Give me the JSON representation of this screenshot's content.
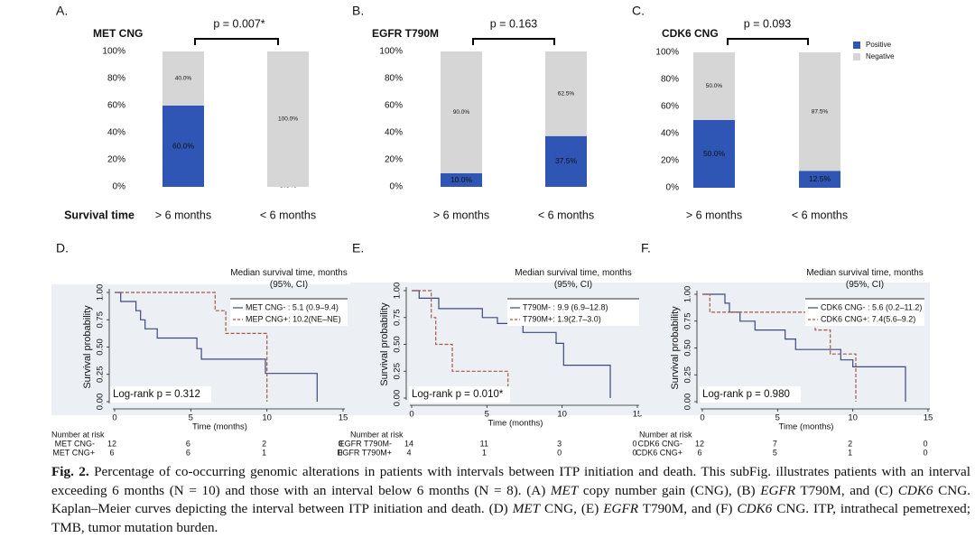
{
  "chart_data": [
    {
      "type": "bar",
      "panel": "A.",
      "title": "MET CNG",
      "annotation": "p = 0.007*",
      "xlabel": "Survival time",
      "categories": [
        "> 6 months",
        "< 6 months"
      ],
      "series": [
        {
          "color": "#2f55b5",
          "values": [
            60,
            0
          ],
          "value_labels": [
            "60.0%",
            "0.0%"
          ]
        },
        {
          "color": "#d6d6d6",
          "values": [
            40,
            100
          ],
          "value_labels": [
            "40.0%",
            "100.0%"
          ]
        }
      ],
      "ylim": [
        0,
        100
      ],
      "yticks": [
        {
          "value": 0,
          "label": "0%"
        },
        {
          "value": 20,
          "label": "20%"
        },
        {
          "value": 40,
          "label": "40%"
        },
        {
          "value": 60,
          "label": "60%"
        },
        {
          "value": 80,
          "label": "80%"
        },
        {
          "value": 100,
          "label": "100%"
        }
      ]
    },
    {
      "type": "bar",
      "panel": "B.",
      "title": "EGFR T790M",
      "annotation": "p = 0.163",
      "categories": [
        "> 6 months",
        "< 6 months"
      ],
      "series": [
        {
          "color": "#2f55b5",
          "values": [
            10,
            37.5
          ],
          "value_labels": [
            "10.0%",
            "37.5%"
          ]
        },
        {
          "color": "#d6d6d6",
          "values": [
            90,
            62.5
          ],
          "value_labels": [
            "90.0%",
            "62.5%"
          ]
        }
      ],
      "ylim": [
        0,
        100
      ],
      "yticks": [
        {
          "value": 0,
          "label": "0%"
        },
        {
          "value": 20,
          "label": "20%"
        },
        {
          "value": 40,
          "label": "40%"
        },
        {
          "value": 60,
          "label": "60%"
        },
        {
          "value": 80,
          "label": "80%"
        },
        {
          "value": 100,
          "label": "100%"
        }
      ]
    },
    {
      "type": "bar",
      "panel": "C.",
      "title": "CDK6 CNG",
      "annotation": "p = 0.093",
      "legend": true,
      "categories": [
        "> 6 months",
        "< 6 months"
      ],
      "series": [
        {
          "name": "Positive",
          "color": "#2f55b5",
          "values": [
            50,
            12.5
          ],
          "value_labels": [
            "50.0%",
            "12.5%"
          ]
        },
        {
          "name": "Negative",
          "color": "#d6d6d6",
          "values": [
            50,
            87.5
          ],
          "value_labels": [
            "50.0%",
            "87.5%"
          ]
        }
      ],
      "ylim": [
        0,
        100
      ],
      "yticks": [
        {
          "value": 0,
          "label": "0%"
        },
        {
          "value": 20,
          "label": "20%"
        },
        {
          "value": 40,
          "label": "40%"
        },
        {
          "value": 60,
          "label": "60%"
        },
        {
          "value": 80,
          "label": "80%"
        },
        {
          "value": 100,
          "label": "100%"
        }
      ]
    },
    {
      "type": "line",
      "panel": "D.",
      "xlabel": "Time (months)",
      "ylabel": "Survival probability",
      "legend_title": "Median survival time, months (95%, CI)",
      "annotation": "Log-rank p = 0.312",
      "xlim": [
        0,
        15
      ],
      "ylim": [
        0,
        1
      ],
      "xticks": [
        0,
        5,
        10,
        15
      ],
      "yticks": [
        {
          "value": 0,
          "label": "0.00"
        },
        {
          "value": 0.25,
          "label": "0.25"
        },
        {
          "value": 0.5,
          "label": "0.50"
        },
        {
          "value": 0.75,
          "label": "0.75"
        },
        {
          "value": 1,
          "label": "1.00"
        }
      ],
      "series": [
        {
          "name": "MET CNG- : 5.1 (0.9–9.4)",
          "color": "#3b4a7c",
          "dashed": false,
          "x": [
            0,
            0.4,
            0.4,
            1.4,
            1.4,
            1.7,
            1.7,
            2,
            2,
            2.8,
            2.8,
            5.4,
            5.4,
            5.7,
            5.7,
            9.9,
            9.9,
            13.3,
            13.3
          ],
          "values": [
            1,
            1,
            0.917,
            0.917,
            0.833,
            0.833,
            0.75,
            0.75,
            0.667,
            0.667,
            0.583,
            0.583,
            0.486,
            0.486,
            0.389,
            0.389,
            0.259,
            0.259,
            0
          ]
        },
        {
          "name": "MEP CNG+: 10.2(NE–NE)",
          "color": "#a5574a",
          "dashed": true,
          "x": [
            0,
            6.6,
            6.6,
            7.3,
            7.3,
            10,
            10
          ],
          "values": [
            1,
            1,
            0.833,
            0.833,
            0.625,
            0.625,
            0
          ]
        }
      ],
      "risk_table": {
        "title": "Number at risk",
        "rows": [
          {
            "label": "MET CNG-",
            "values": [
              12,
              6,
              2,
              0
            ]
          },
          {
            "label": "MET CNG+",
            "values": [
              6,
              6,
              1,
              0
            ]
          }
        ]
      }
    },
    {
      "type": "line",
      "panel": "E.",
      "xlabel": "Time (months)",
      "ylabel": "Survival probability",
      "legend_title": "Median survival time, months (95%, CI)",
      "annotation": "Log-rank p = 0.010*",
      "xlim": [
        0,
        15
      ],
      "ylim": [
        0,
        1
      ],
      "xticks": [
        0,
        5,
        10,
        15
      ],
      "yticks": [
        {
          "value": 0,
          "label": "0.00"
        },
        {
          "value": 0.25,
          "label": "0.25"
        },
        {
          "value": 0.5,
          "label": "0.50"
        },
        {
          "value": 0.75,
          "label": "0.75"
        },
        {
          "value": 1,
          "label": "1.00"
        }
      ],
      "series": [
        {
          "name": "T790M- : 9.9 (6.9–12.8)",
          "color": "#3b4a7c",
          "dashed": false,
          "x": [
            0,
            0.5,
            0.5,
            1.8,
            1.8,
            4.7,
            4.7,
            5.7,
            5.7,
            7.4,
            7.4,
            9.6,
            9.6,
            10.1,
            10.1,
            13.2,
            13.2
          ],
          "values": [
            1,
            1,
            0.929,
            0.929,
            0.833,
            0.833,
            0.75,
            0.75,
            0.694,
            0.694,
            0.611,
            0.611,
            0.509,
            0.509,
            0.306,
            0.306,
            0
          ]
        },
        {
          "name": "T790M+: 1.9(2.7–3.0)",
          "color": "#a5574a",
          "dashed": true,
          "x": [
            0,
            1.3,
            1.3,
            1.6,
            1.6,
            2.7,
            2.7,
            6.4,
            6.4
          ],
          "values": [
            1,
            1,
            0.75,
            0.75,
            0.5,
            0.5,
            0.25,
            0.25,
            0
          ]
        }
      ],
      "risk_table": {
        "title": "Number at risk",
        "rows": [
          {
            "label": "EGFR T790M-",
            "values": [
              14,
              11,
              3,
              0
            ]
          },
          {
            "label": "EGFR T790M+",
            "values": [
              4,
              1,
              0,
              0
            ]
          }
        ]
      }
    },
    {
      "type": "line",
      "panel": "F.",
      "xlabel": "Time (months)",
      "ylabel": "Survival probability",
      "legend_title": "Median survival time, months (95%, CI)",
      "annotation": "Log-rank p = 0.980",
      "xlim": [
        0,
        15
      ],
      "ylim": [
        0,
        1
      ],
      "xticks": [
        0,
        5,
        10,
        15
      ],
      "yticks": [
        {
          "value": 0,
          "label": "0.00"
        },
        {
          "value": 0.25,
          "label": "0.25"
        },
        {
          "value": 0.5,
          "label": "0.50"
        },
        {
          "value": 0.75,
          "label": "0.75"
        },
        {
          "value": 1,
          "label": "1.00"
        }
      ],
      "series": [
        {
          "name": "CDK6 CNG- : 5.6 (0.2–11.2)",
          "color": "#3b4a7c",
          "dashed": false,
          "x": [
            0,
            1.5,
            1.5,
            1.8,
            1.8,
            2.5,
            2.5,
            3.5,
            3.5,
            5.5,
            5.5,
            6.2,
            6.2,
            9.2,
            9.2,
            10,
            10,
            13.5,
            13.5
          ],
          "values": [
            1,
            1,
            0.917,
            0.917,
            0.833,
            0.833,
            0.75,
            0.75,
            0.667,
            0.667,
            0.583,
            0.583,
            0.486,
            0.486,
            0.389,
            0.389,
            0.324,
            0.324,
            0
          ]
        },
        {
          "name": "CDK6 CNG+: 7.4(5.6–9.2)",
          "color": "#a5574a",
          "dashed": true,
          "x": [
            0,
            0.5,
            0.5,
            7.5,
            7.5,
            8.5,
            8.5,
            10.2,
            10.2
          ],
          "values": [
            1,
            1,
            0.833,
            0.833,
            0.667,
            0.667,
            0.444,
            0.444,
            0
          ]
        }
      ],
      "risk_table": {
        "title": "Number at risk",
        "rows": [
          {
            "label": "CDK6 CNG-",
            "values": [
              12,
              7,
              2,
              0
            ]
          },
          {
            "label": "CDK6 CNG+",
            "values": [
              6,
              5,
              1,
              0
            ]
          }
        ]
      }
    }
  ],
  "caption": {
    "label": "Fig. 2.",
    "segments": [
      {
        "text": " Percentage of co-occurring genomic alterations in patients with intervals between ITP initiation and death. This subFig. illustrates patients with an interval exceeding 6 months (N = 10) and those with an interval below 6 months (N = 8). (A) ",
        "italic": false
      },
      {
        "text": "MET",
        "italic": true
      },
      {
        "text": " copy number gain (CNG), (B) ",
        "italic": false
      },
      {
        "text": "EGFR",
        "italic": true
      },
      {
        "text": " T790M, and (C) ",
        "italic": false
      },
      {
        "text": "CDK6",
        "italic": true
      },
      {
        "text": " CNG. Kaplan–Meier curves depicting the interval between ITP initiation and death. (D) ",
        "italic": false
      },
      {
        "text": "MET",
        "italic": true
      },
      {
        "text": " CNG, (E) ",
        "italic": false
      },
      {
        "text": "EGFR",
        "italic": true
      },
      {
        "text": " T790M, and (F) ",
        "italic": false
      },
      {
        "text": "CDK6",
        "italic": true
      },
      {
        "text": " CNG. ITP, intrathecal pemetrexed; TMB, tumor mutation burden.",
        "italic": false
      }
    ]
  }
}
